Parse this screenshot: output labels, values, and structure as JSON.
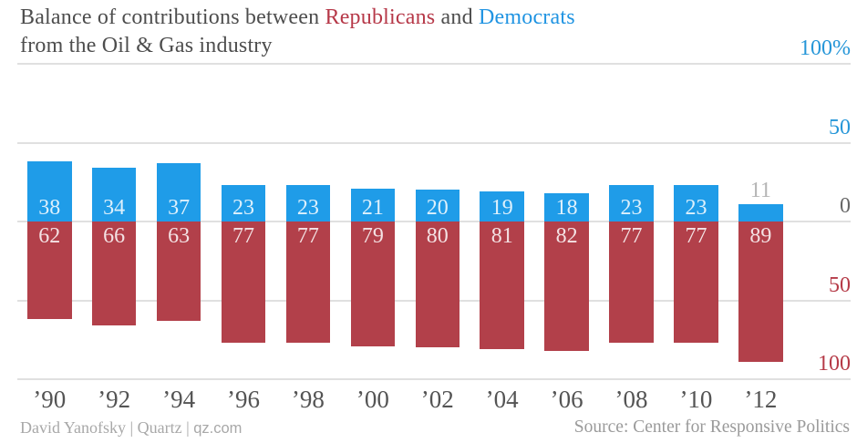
{
  "title": {
    "line1_prefix": "Balance of contributions between ",
    "republicans": "Republicans",
    "connector": " and ",
    "democrats": "Democrats",
    "line2": "from the Oil & Gas industry"
  },
  "colors": {
    "democrat_bar": "#1f9ce8",
    "republican_bar": "#b2404a",
    "democrat_text": "#2596d8",
    "republican_text": "#b53a47",
    "zero_text": "#666666",
    "gridline": "#e0e0e0",
    "outside_label": "#b5b5b5",
    "inside_label": "rgba(255,255,255,0.85)"
  },
  "axis": {
    "right_labels": [
      {
        "text": "100%",
        "value": 100,
        "color_key": "democrat_text"
      },
      {
        "text": "50",
        "value": 50,
        "color_key": "democrat_text"
      },
      {
        "text": "0",
        "value": 0,
        "color_key": "zero_text"
      },
      {
        "text": "50",
        "value": -50,
        "color_key": "republican_text"
      },
      {
        "text": "100",
        "value": -100,
        "color_key": "republican_text"
      }
    ]
  },
  "chart_data": {
    "type": "bar",
    "subtype": "diverging-stacked-percentage",
    "title": "Balance of contributions between Republicans and Democrats from the Oil & Gas industry",
    "categories": [
      "’90",
      "’92",
      "’94",
      "’96",
      "’98",
      "’00",
      "’02",
      "’04",
      "’06",
      "’08",
      "’10",
      "’12"
    ],
    "series": [
      {
        "name": "Democrats",
        "direction": "up",
        "values": [
          38,
          34,
          37,
          23,
          23,
          21,
          20,
          19,
          18,
          23,
          23,
          11
        ]
      },
      {
        "name": "Republicans",
        "direction": "down",
        "values": [
          62,
          66,
          63,
          77,
          77,
          79,
          80,
          81,
          82,
          77,
          77,
          89
        ]
      }
    ],
    "ylim": [
      -100,
      100
    ],
    "gridline_values": [
      100,
      50,
      0,
      -50,
      -100
    ],
    "grid": true,
    "legend_position": "none",
    "value_labels": "on-bars"
  },
  "footer": {
    "credit_serif": "David Yanofsky | Quartz | ",
    "credit_sans": "qz.com",
    "source": "Source: Center for Responsive Politics"
  }
}
